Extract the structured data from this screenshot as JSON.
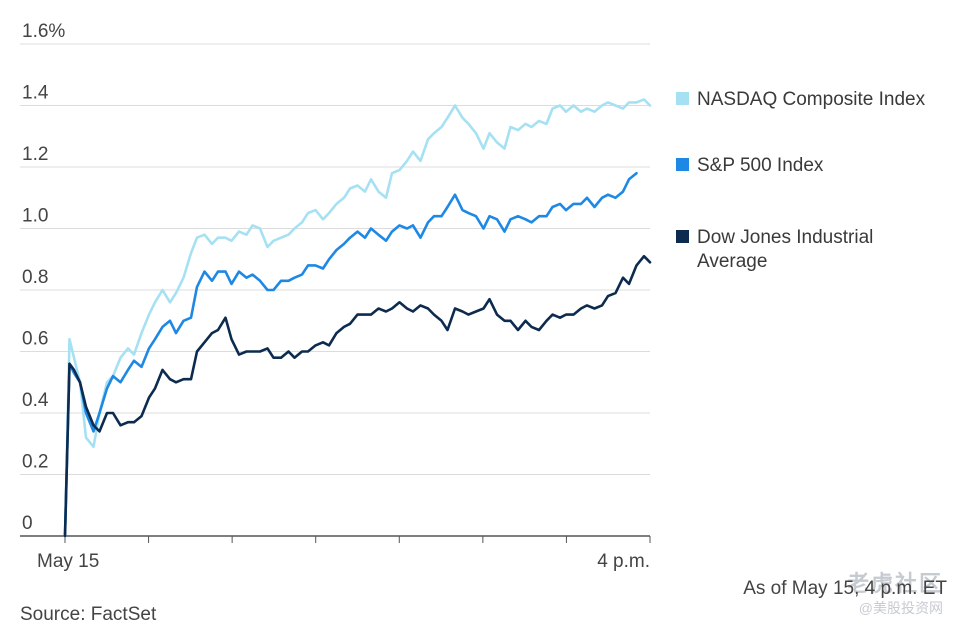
{
  "chart_data": {
    "type": "line",
    "ylabel": "",
    "ylim": [
      0,
      1.6
    ],
    "yticks": [
      0,
      0.2,
      0.4,
      0.6,
      0.8,
      1.0,
      1.2,
      1.4,
      1.6
    ],
    "ytick_labels": [
      "0",
      "0.2",
      "0.4",
      "0.6",
      "0.8",
      "1.0",
      "1.2",
      "1.4",
      "1.6%"
    ],
    "x_range_minutes": [
      0,
      390
    ],
    "x_tick_count": 8,
    "xtick_labels": [
      {
        "at": 0,
        "label": "May 15"
      },
      {
        "at": 390,
        "label": "4 p.m."
      }
    ],
    "series": [
      {
        "name": "NASDAQ Composite Index",
        "color": "#a6e1f3",
        "x": [
          0,
          3,
          6,
          10,
          14,
          19,
          23,
          28,
          32,
          37,
          42,
          46,
          51,
          56,
          60,
          65,
          70,
          74,
          79,
          84,
          88,
          93,
          98,
          102,
          107,
          111,
          116,
          121,
          125,
          130,
          135,
          139,
          144,
          149,
          153,
          158,
          162,
          167,
          172,
          176,
          181,
          186,
          190,
          195,
          200,
          204,
          209,
          214,
          218,
          223,
          228,
          232,
          237,
          242,
          246,
          251,
          255,
          260,
          265,
          269,
          274,
          279,
          283,
          288,
          293,
          297,
          302,
          307,
          311,
          316,
          321,
          325,
          330,
          334,
          339,
          344,
          348,
          353,
          358,
          362,
          367,
          372,
          376,
          381,
          386,
          390
        ],
        "values": [
          0.0,
          0.64,
          0.58,
          0.5,
          0.32,
          0.29,
          0.4,
          0.5,
          0.52,
          0.58,
          0.61,
          0.59,
          0.66,
          0.72,
          0.76,
          0.8,
          0.76,
          0.79,
          0.84,
          0.92,
          0.97,
          0.98,
          0.95,
          0.97,
          0.97,
          0.96,
          0.99,
          0.98,
          1.01,
          1.0,
          0.94,
          0.96,
          0.97,
          0.98,
          1.0,
          1.02,
          1.05,
          1.06,
          1.03,
          1.05,
          1.08,
          1.1,
          1.13,
          1.14,
          1.12,
          1.16,
          1.12,
          1.1,
          1.18,
          1.19,
          1.22,
          1.25,
          1.22,
          1.29,
          1.31,
          1.33,
          1.36,
          1.4,
          1.36,
          1.34,
          1.31,
          1.26,
          1.31,
          1.28,
          1.26,
          1.33,
          1.32,
          1.34,
          1.33,
          1.35,
          1.34,
          1.39,
          1.4,
          1.38,
          1.4,
          1.38,
          1.39,
          1.38,
          1.4,
          1.41,
          1.4,
          1.39,
          1.41,
          1.41,
          1.42,
          1.4
        ]
      },
      {
        "name": "S&P 500 Index",
        "color": "#1e88e5",
        "x": [
          0,
          3,
          6,
          10,
          14,
          19,
          23,
          28,
          32,
          37,
          42,
          46,
          51,
          56,
          60,
          65,
          70,
          74,
          79,
          84,
          88,
          93,
          98,
          102,
          107,
          111,
          116,
          121,
          125,
          130,
          135,
          139,
          144,
          149,
          153,
          158,
          162,
          167,
          172,
          176,
          181,
          186,
          190,
          195,
          200,
          204,
          209,
          214,
          218,
          223,
          228,
          232,
          237,
          242,
          246,
          251,
          255,
          260,
          265,
          269,
          274,
          279,
          283,
          288,
          293,
          297,
          302,
          307,
          311,
          316,
          321,
          325,
          330,
          334,
          339,
          344,
          348,
          353,
          358,
          362,
          367,
          372,
          376,
          381
        ],
        "values": [
          0.0,
          0.56,
          0.53,
          0.5,
          0.4,
          0.34,
          0.4,
          0.48,
          0.52,
          0.5,
          0.54,
          0.57,
          0.55,
          0.61,
          0.64,
          0.68,
          0.7,
          0.66,
          0.7,
          0.71,
          0.81,
          0.86,
          0.83,
          0.86,
          0.86,
          0.82,
          0.86,
          0.84,
          0.85,
          0.83,
          0.8,
          0.8,
          0.83,
          0.83,
          0.84,
          0.85,
          0.88,
          0.88,
          0.87,
          0.9,
          0.93,
          0.95,
          0.97,
          0.99,
          0.97,
          1.0,
          0.98,
          0.96,
          0.99,
          1.01,
          1.0,
          1.01,
          0.97,
          1.02,
          1.04,
          1.04,
          1.07,
          1.11,
          1.06,
          1.05,
          1.04,
          1.0,
          1.04,
          1.03,
          0.99,
          1.03,
          1.04,
          1.03,
          1.02,
          1.04,
          1.04,
          1.07,
          1.08,
          1.06,
          1.08,
          1.08,
          1.1,
          1.07,
          1.1,
          1.11,
          1.1,
          1.12,
          1.16,
          1.18
        ]
      },
      {
        "name": "Dow Jones Industrial Average",
        "color": "#0c2b4f",
        "x": [
          0,
          3,
          6,
          10,
          14,
          19,
          23,
          28,
          32,
          37,
          42,
          46,
          51,
          56,
          60,
          65,
          70,
          74,
          79,
          84,
          88,
          93,
          98,
          102,
          107,
          111,
          116,
          121,
          125,
          130,
          135,
          139,
          144,
          149,
          153,
          158,
          162,
          167,
          172,
          176,
          181,
          186,
          190,
          195,
          200,
          204,
          209,
          214,
          218,
          223,
          228,
          232,
          237,
          242,
          246,
          251,
          255,
          260,
          265,
          269,
          274,
          279,
          283,
          288,
          293,
          297,
          302,
          307,
          311,
          316,
          321,
          325,
          330,
          334,
          339,
          344,
          348,
          353,
          358,
          362,
          367,
          372,
          376,
          381,
          386,
          390
        ],
        "values": [
          0.0,
          0.56,
          0.54,
          0.5,
          0.42,
          0.36,
          0.34,
          0.4,
          0.4,
          0.36,
          0.37,
          0.37,
          0.39,
          0.45,
          0.48,
          0.54,
          0.51,
          0.5,
          0.51,
          0.51,
          0.6,
          0.63,
          0.66,
          0.67,
          0.71,
          0.64,
          0.59,
          0.6,
          0.6,
          0.6,
          0.61,
          0.58,
          0.58,
          0.6,
          0.58,
          0.6,
          0.6,
          0.62,
          0.63,
          0.62,
          0.66,
          0.68,
          0.69,
          0.72,
          0.72,
          0.72,
          0.74,
          0.73,
          0.74,
          0.76,
          0.74,
          0.73,
          0.75,
          0.74,
          0.72,
          0.7,
          0.67,
          0.74,
          0.73,
          0.72,
          0.73,
          0.74,
          0.77,
          0.72,
          0.7,
          0.7,
          0.67,
          0.7,
          0.68,
          0.67,
          0.7,
          0.72,
          0.71,
          0.72,
          0.72,
          0.74,
          0.75,
          0.74,
          0.75,
          0.78,
          0.79,
          0.84,
          0.82,
          0.88,
          0.91,
          0.89
        ]
      }
    ]
  },
  "legend": {
    "items": [
      {
        "label": "NASDAQ Composite Index",
        "color": "#a6e1f3"
      },
      {
        "label": "S&P 500 Index",
        "color": "#1e88e5"
      },
      {
        "label": "Dow Jones Industrial Average",
        "color": "#0c2b4f"
      }
    ]
  },
  "footer": {
    "source": "Source: FactSet",
    "as_of": "As of May 15, 4 p.m. ET"
  },
  "watermark": {
    "title": "老虎社区",
    "subtitle": "@美股投资网"
  }
}
